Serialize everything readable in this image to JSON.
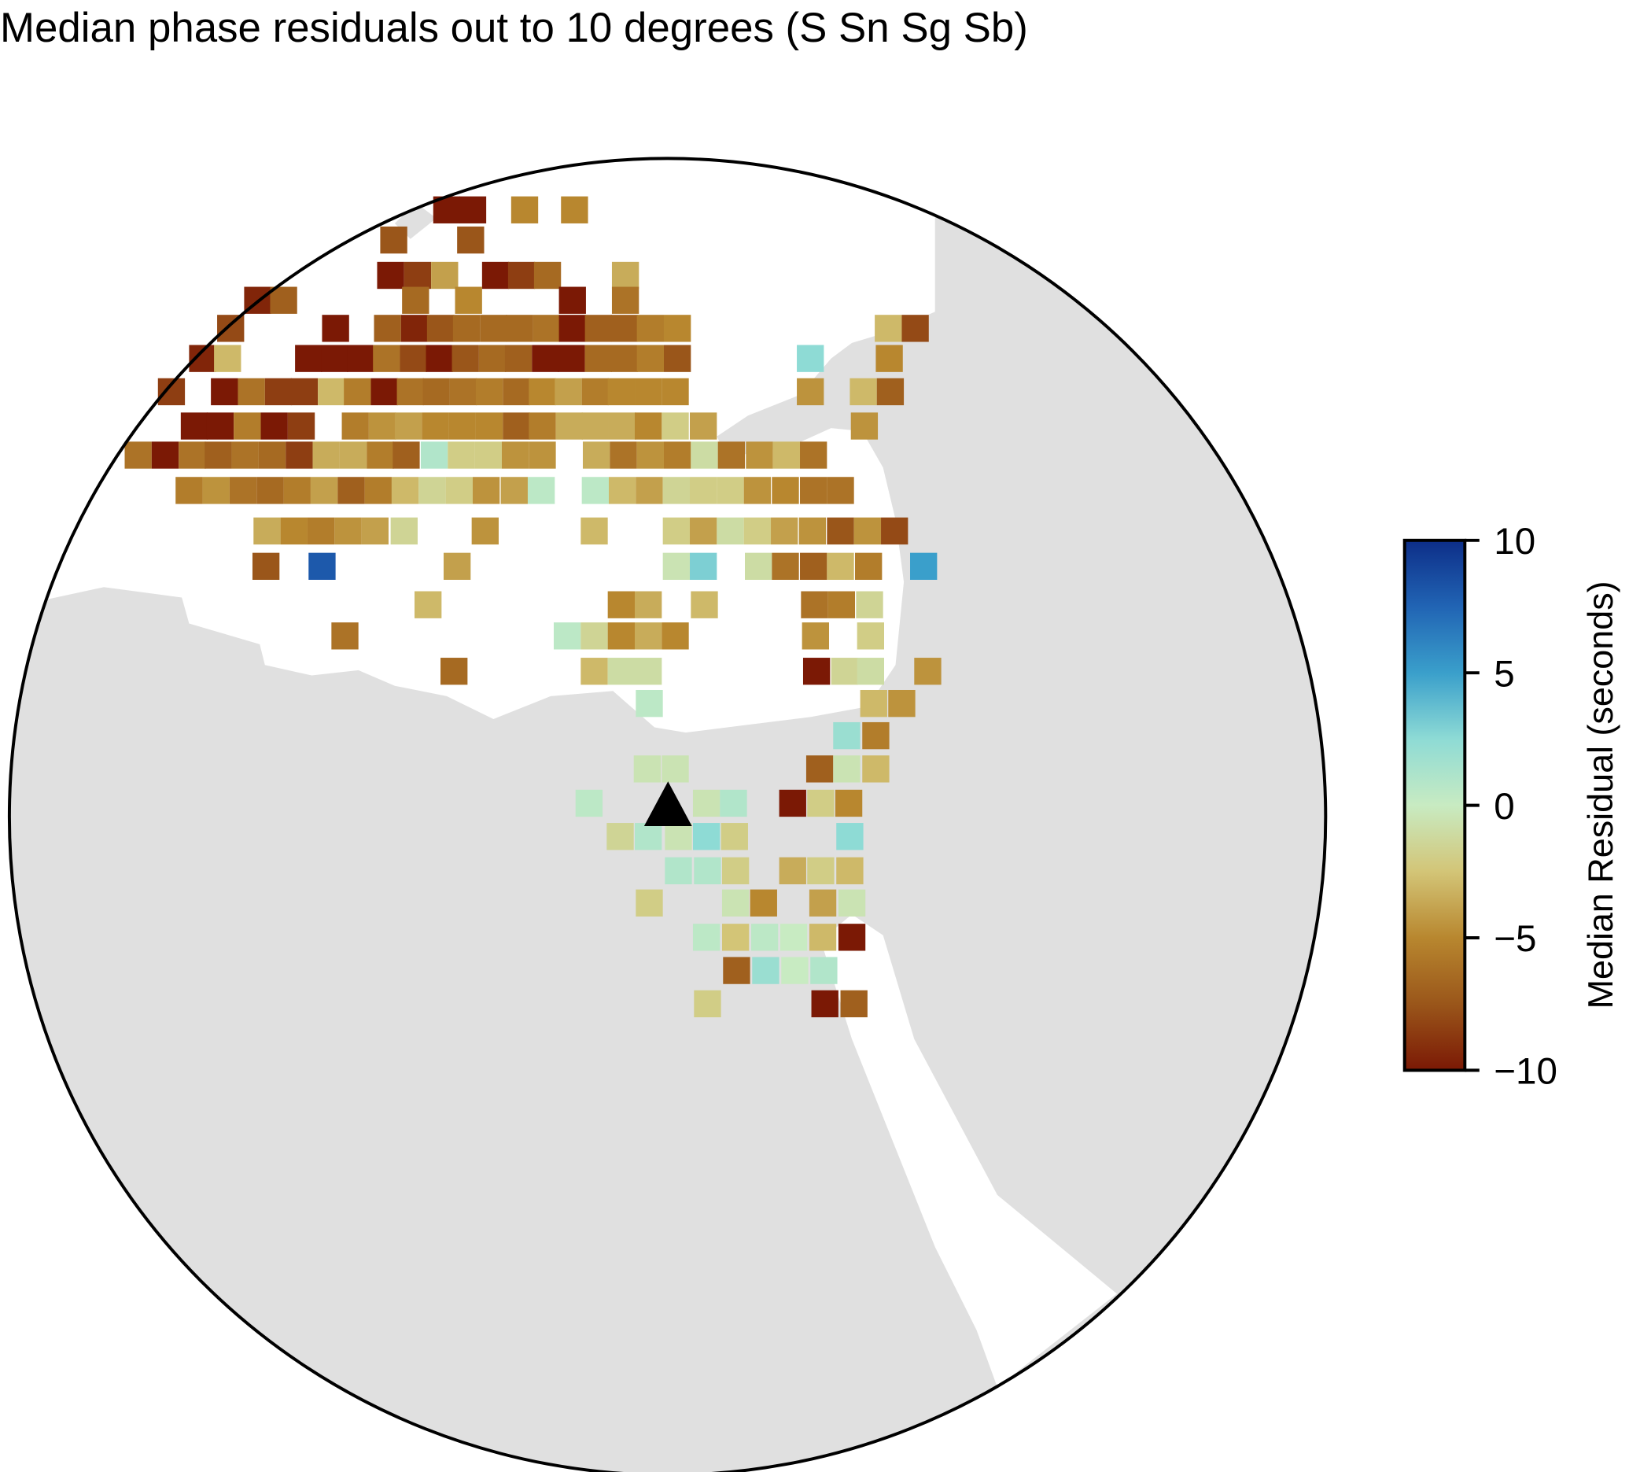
{
  "title": "Median phase residuals out to 10 degrees (S Sn Sg Sb)",
  "colorbar": {
    "label": "Median Residual (seconds)",
    "lim": [
      -10,
      10
    ],
    "ticks": [
      10,
      5,
      0,
      {
        "value": -5,
        "label": "−5"
      },
      {
        "value": -10,
        "label": "−10"
      }
    ],
    "colors": [
      "#7b1905",
      "#9a561a",
      "#b8872f",
      "#d3c577",
      "#c8ebc2",
      "#8edbd5",
      "#3a9fcb",
      "#2164b4",
      "#0d2e88"
    ]
  },
  "residuals": [
    [
      -10,
      -10,
      -5,
      -5
    ],
    [
      -7.5,
      -7.5
    ],
    [
      -10,
      -8.5,
      -4,
      -10,
      -8.5,
      -6.5,
      -3.5
    ],
    [
      -9.5,
      -7,
      -6.5,
      -5,
      -10,
      -6
    ],
    [
      -8,
      -10,
      -7,
      -9.5,
      -7.5,
      -6.5,
      -6.5,
      -6.5,
      -6,
      -10,
      -7,
      -7,
      -5.5,
      -5,
      -3,
      -8
    ],
    [
      -9.5,
      -3,
      -10,
      -10,
      -10,
      -6,
      -8,
      -10,
      -7.5,
      -6.5,
      -7,
      -10,
      -10,
      -6.5,
      -6.5,
      -5.5,
      -7.5,
      2.5,
      -5
    ],
    [
      -8.5,
      -10,
      -6,
      -8.5,
      -8.5,
      -3,
      -5.5,
      -10,
      -6,
      -6.5,
      -6,
      -5.5,
      -6.5,
      -5,
      -4,
      -5.5,
      -5,
      -5,
      -5,
      -4.5,
      -3,
      -7
    ],
    [
      -10,
      -10,
      -5.5,
      -10,
      -8.5,
      -5.5,
      -4.5,
      -4,
      -5,
      -5,
      -5,
      -7,
      -5.5,
      -3.5,
      -3.5,
      -3.5,
      -5,
      -2,
      -4,
      -4.5
    ],
    [
      -6,
      -10,
      -6,
      -7,
      -6,
      -6.5,
      -8.5,
      -3.5,
      -3.5,
      -5.5,
      -7,
      1,
      -2,
      -2,
      -4.5,
      -4.5,
      -3.5,
      -6,
      -4.5,
      -5.5,
      -1,
      -6,
      -4.5,
      -3,
      -6
    ],
    [
      -5.5,
      -4.5,
      -6,
      -6.5,
      -5.5,
      -4,
      -7,
      -5.5,
      -3,
      -1.5,
      -2,
      -4.5,
      -4,
      0.5,
      0.5,
      -3,
      -4,
      -1.5,
      -2,
      -2,
      -4.5,
      -5,
      -6,
      -6
    ],
    [
      -3.5,
      -5,
      -5.5,
      -4.5,
      -4,
      -1.5,
      -4.5,
      -3,
      -2,
      -4,
      -1,
      -2,
      -4,
      -4.5,
      -7.5,
      -4.5,
      -8
    ],
    [
      -7.5,
      8,
      -4,
      -0.5,
      3,
      -1,
      -6,
      -7,
      -3,
      -5.5,
      5
    ],
    [
      -3,
      -5,
      -3.5,
      -3,
      -6,
      -5.5,
      -1.5
    ],
    [
      -6,
      0.5,
      -1.5,
      -5,
      -3.5,
      -5,
      -4.5,
      -2
    ],
    [
      -6.5,
      -3,
      -1,
      -1,
      -10,
      -1.5,
      -1,
      -4.5
    ],
    [
      0.5,
      -3,
      -4.5
    ],
    [
      2,
      -5.5
    ],
    [
      -0.5,
      -0.5,
      -7,
      -0.5,
      -3
    ],
    [
      0.5,
      -0.5,
      1,
      -10,
      -2,
      -5
    ],
    [
      -1.5,
      1,
      -0.5,
      2.5,
      -2,
      2.5
    ],
    [
      1,
      1,
      -2,
      -3.5,
      -2,
      -3
    ],
    [
      -2,
      -0.5,
      -5,
      -4,
      -0.5
    ],
    [
      0.5,
      -2.5,
      0.5,
      0,
      -3,
      -10
    ],
    [
      -7,
      2,
      0,
      1
    ],
    [
      -2,
      -10,
      -7
    ]
  ]
}
